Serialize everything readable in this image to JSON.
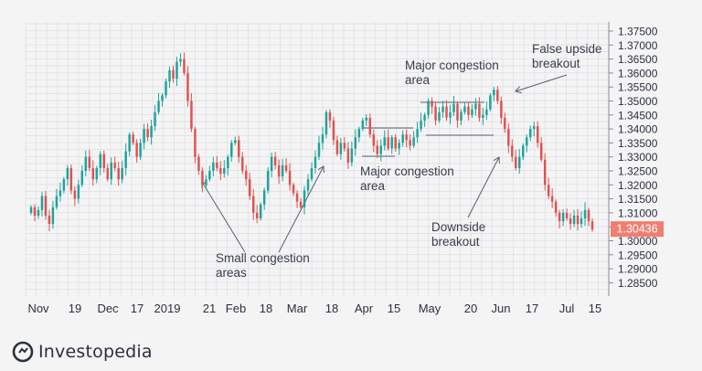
{
  "chart_data": {
    "type": "candlestick",
    "colors": {
      "up": "#1fa39a",
      "down": "#e0524f",
      "grid": "#dcdde2",
      "text": "#2b3040",
      "annot": "#3a3e4c",
      "badge": "#f07e6f"
    },
    "y_ticks": [
      "1.37500",
      "1.37000",
      "1.36500",
      "1.36000",
      "1.35500",
      "1.35000",
      "1.34500",
      "1.34000",
      "1.33500",
      "1.33000",
      "1.32500",
      "1.32000",
      "1.31500",
      "1.31000",
      "1.30500",
      "1.30000",
      "1.29500",
      "1.29000",
      "1.28500"
    ],
    "ylim": [
      1.285,
      1.375
    ],
    "x_ticks": [
      "Nov",
      "19",
      "Dec",
      "17",
      "2019",
      "21",
      "Feb",
      "18",
      "Mar",
      "18",
      "Apr",
      "15",
      "May",
      "20",
      "Jun",
      "17",
      "Jul",
      "15"
    ],
    "current_price": "1.30436",
    "annotations": {
      "false_upside": [
        "False upside",
        "breakout"
      ],
      "major_top": [
        "Major congestion",
        "area"
      ],
      "major_bottom": [
        "Major congestion",
        "area"
      ],
      "small": [
        "Small congestion",
        "areas"
      ],
      "downside": [
        "Downside",
        "breakout"
      ]
    },
    "closes": [
      1.312,
      1.309,
      1.311,
      1.316,
      1.309,
      1.306,
      1.312,
      1.316,
      1.318,
      1.322,
      1.326,
      1.318,
      1.315,
      1.32,
      1.325,
      1.33,
      1.326,
      1.322,
      1.326,
      1.331,
      1.326,
      1.322,
      1.328,
      1.326,
      1.322,
      1.326,
      1.332,
      1.338,
      1.335,
      1.33,
      1.335,
      1.34,
      1.337,
      1.341,
      1.346,
      1.35,
      1.352,
      1.357,
      1.361,
      1.358,
      1.364,
      1.365,
      1.36,
      1.35,
      1.34,
      1.33,
      1.325,
      1.32,
      1.322,
      1.325,
      1.328,
      1.326,
      1.324,
      1.326,
      1.33,
      1.335,
      1.336,
      1.33,
      1.325,
      1.322,
      1.316,
      1.31,
      1.308,
      1.313,
      1.318,
      1.325,
      1.33,
      1.327,
      1.323,
      1.327,
      1.325,
      1.32,
      1.317,
      1.314,
      1.312,
      1.318,
      1.322,
      1.326,
      1.33,
      1.335,
      1.338,
      1.346,
      1.343,
      1.336,
      1.331,
      1.335,
      1.333,
      1.328,
      1.333,
      1.337,
      1.34,
      1.343,
      1.344,
      1.338,
      1.334,
      1.331,
      1.334,
      1.337,
      1.333,
      1.337,
      1.333,
      1.335,
      1.338,
      1.336,
      1.334,
      1.337,
      1.34,
      1.343,
      1.345,
      1.35,
      1.348,
      1.343,
      1.346,
      1.348,
      1.344,
      1.346,
      1.349,
      1.343,
      1.346,
      1.348,
      1.345,
      1.347,
      1.349,
      1.344,
      1.345,
      1.347,
      1.352,
      1.354,
      1.35,
      1.344,
      1.34,
      1.334,
      1.33,
      1.326,
      1.33,
      1.334,
      1.337,
      1.34,
      1.341,
      1.335,
      1.329,
      1.32,
      1.316,
      1.314,
      1.31,
      1.307,
      1.31,
      1.308,
      1.306,
      1.309,
      1.306,
      1.308,
      1.311,
      1.307,
      1.304
    ]
  }
}
